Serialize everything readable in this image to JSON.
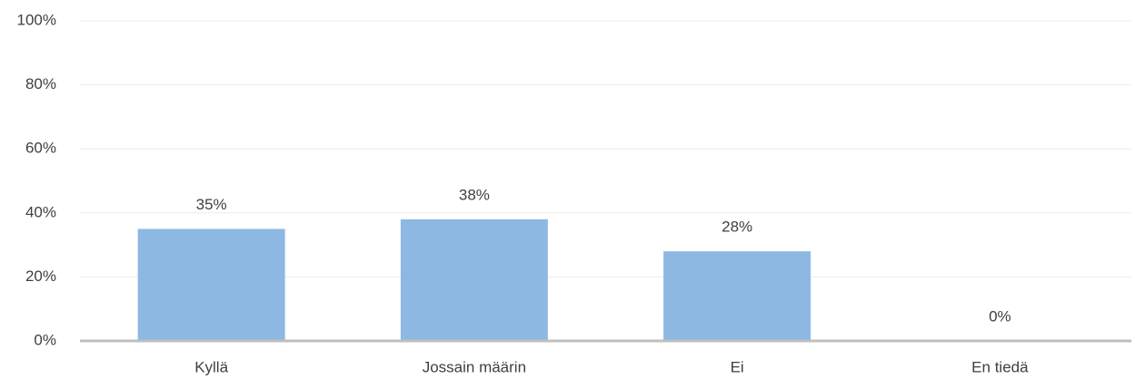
{
  "chart_data": {
    "type": "bar",
    "categories": [
      "Kyllä",
      "Jossain määrin",
      "Ei",
      "En tiedä"
    ],
    "values": [
      35,
      38,
      28,
      0
    ],
    "value_labels": [
      "35%",
      "38%",
      "28%",
      "0%"
    ],
    "color": "#8db8e2",
    "ylim": [
      0,
      100
    ],
    "yticks": [
      {
        "value": 0,
        "label": "0%"
      },
      {
        "value": 20,
        "label": "20%"
      },
      {
        "value": 40,
        "label": "40%"
      },
      {
        "value": 60,
        "label": "60%"
      },
      {
        "value": 80,
        "label": "80%"
      },
      {
        "value": 100,
        "label": "100%"
      }
    ],
    "grid": true
  }
}
